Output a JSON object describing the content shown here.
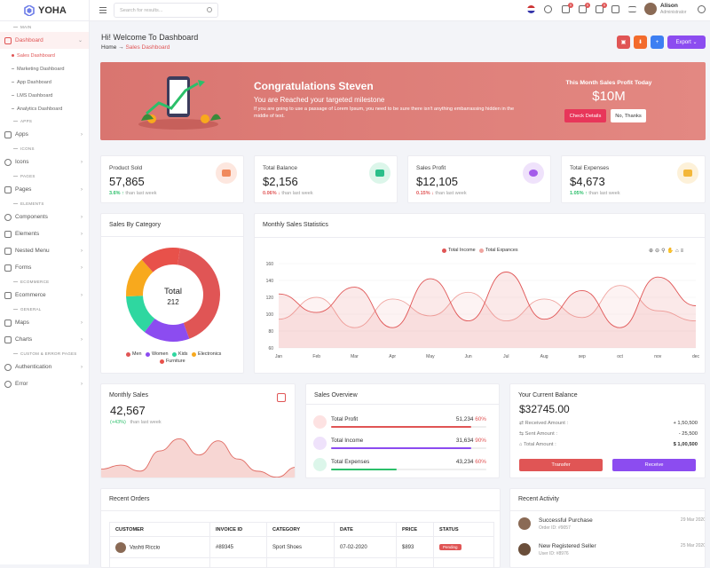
{
  "app": {
    "brand": "YOHA"
  },
  "header": {
    "search_placeholder": "Search for results...",
    "user_name": "Alison",
    "user_role": "Administrator",
    "badges": [
      "0",
      "0",
      "0"
    ]
  },
  "sidebar": {
    "sections": {
      "main": "MAIN",
      "apps": "APPS",
      "icons": "ICONS",
      "pages": "PAGES",
      "elements": "ELEMENTS",
      "ecommerce": "ECOMMERCE",
      "general": "GENERAL",
      "custom": "CUSTOM & ERROR PAGES"
    },
    "dashboard": "Dashboard",
    "subs": [
      "Sales Dashboard",
      "Marketing Dashboard",
      "App Dashboard",
      "LMS Dashboard",
      "Analytics Dashboard"
    ],
    "items": {
      "apps": "Apps",
      "icons": "Icons",
      "pages": "Pages",
      "components": "Components",
      "elements": "Elements",
      "nested": "Nested Menu",
      "forms": "Forms",
      "ecommerce": "Ecommerce",
      "maps": "Maps",
      "charts": "Charts",
      "auth": "Authentication",
      "error": "Error"
    }
  },
  "page": {
    "title": "Hi! Welcome To Dashboard",
    "crumb_home": "Home",
    "crumb_arrow": "→",
    "crumb_current": "Sales Dashboard",
    "export": "Export"
  },
  "banner": {
    "title": "Congratulations Steven",
    "subtitle": "You are Reached your targeted milestone",
    "text": "If you are going to use a passage of Lorem Ipsum, you need to be sure there isn't anything embarrassing hidden in the middle of text.",
    "profit_label": "This Month Sales Profit Today",
    "profit_value": "$10M",
    "details_btn": "Check Details",
    "thanks_btn": "No, Thanks"
  },
  "stats": [
    {
      "label": "Product Sold",
      "value": "57,865",
      "change": "3.6%",
      "arrow": "↑",
      "suffix": "than last week",
      "color": "#2bbf6a",
      "icon_color": "#f08a5d",
      "bg": "#fde7df"
    },
    {
      "label": "Total Balance",
      "value": "$2,156",
      "change": "0.06%",
      "arrow": "↓",
      "suffix": "than last week",
      "color": "#e05555",
      "icon_color": "#2bbf8a",
      "bg": "#dcf6ea"
    },
    {
      "label": "Sales Profit",
      "value": "$12,105",
      "change": "0.15%",
      "arrow": "↓",
      "suffix": "than last week",
      "color": "#e05555",
      "icon_color": "#a35bea",
      "bg": "#efe2fb"
    },
    {
      "label": "Total Expenses",
      "value": "$4,673",
      "change": "1.05%",
      "arrow": "↑",
      "suffix": "than last week",
      "color": "#2bbf6a",
      "icon_color": "#f3b73a",
      "bg": "#fdf1d9"
    }
  ],
  "category": {
    "title": "Sales By Category",
    "center_label": "Total",
    "center_value": "212",
    "legend": [
      {
        "name": "Men",
        "color": "#e05555"
      },
      {
        "name": "Women",
        "color": "#8c4cf0"
      },
      {
        "name": "Kids",
        "color": "#2fd7a0"
      },
      {
        "name": "Electronics",
        "color": "#f8a91d"
      },
      {
        "name": "Furniture",
        "color": "#e8514a"
      }
    ]
  },
  "monthly_stats": {
    "title": "Monthly Sales Statistics"
  },
  "monthly_sales": {
    "title": "Monthly Sales",
    "value": "42,567",
    "change": "(+43%)",
    "suffix": "than last week"
  },
  "overview": {
    "title": "Sales Overview",
    "rows": [
      {
        "name": "Total Profit",
        "value": "51,234",
        "pct": "60%",
        "fill": 0.9,
        "color": "#e05555",
        "bg": "#fde2e2"
      },
      {
        "name": "Total Income",
        "value": "31,634",
        "pct": "90%",
        "fill": 0.9,
        "color": "#8c4cf0",
        "bg": "#efe2fb"
      },
      {
        "name": "Total Expenses",
        "value": "43,234",
        "pct": "60%",
        "fill": 0.42,
        "color": "#2bbf6a",
        "bg": "#dcf6ea"
      }
    ]
  },
  "balance": {
    "title": "Your Current Balance",
    "value": "$32745.00",
    "rows": [
      {
        "label": "Received Amount",
        "sep": ":",
        "value": "+ 1,50,500"
      },
      {
        "label": "Sent Amount",
        "sep": ":",
        "value": "- 25,500"
      },
      {
        "label": "Total Amount",
        "sep": ":",
        "value": "$ 1,00,500"
      }
    ],
    "transfer": "Transfer",
    "receive": "Receive"
  },
  "orders": {
    "title": "Recent Orders",
    "headers": [
      "CUSTOMER",
      "INVOICE ID",
      "CATEGORY",
      "DATE",
      "PRICE",
      "STATUS"
    ],
    "rows": [
      {
        "customer": "Vashti Riccio",
        "invoice": "#89345",
        "category": "Sport Shoes",
        "date": "07-02-2020",
        "price": "$893",
        "status": "Pending"
      }
    ]
  },
  "activity": {
    "title": "Recent Activity",
    "items": [
      {
        "title": "Successful Purchase",
        "sub": "Order ID: #9057",
        "date": "29 Mar 2020"
      },
      {
        "title": "New Registered Seller",
        "sub": "User ID: #8976",
        "date": "25 Mar 2020"
      }
    ]
  },
  "chart_data": [
    {
      "type": "pie",
      "title": "Sales By Category",
      "categories": [
        "Men",
        "Women",
        "Kids",
        "Electronics",
        "Furniture"
      ],
      "values": [
        42,
        16,
        14,
        14,
        14
      ],
      "colors": [
        "#e05555",
        "#8c4cf0",
        "#2fd7a0",
        "#f8a91d",
        "#e8514a"
      ]
    },
    {
      "type": "area",
      "title": "Monthly Sales Statistics",
      "categories": [
        "Jan",
        "Feb",
        "Mar",
        "Apr",
        "May",
        "Jun",
        "Jul",
        "Aug",
        "sep",
        "oct",
        "nov",
        "dec"
      ],
      "series": [
        {
          "name": "Total Income",
          "color": "#e05555",
          "values": [
            124,
            102,
            132,
            84,
            142,
            92,
            150,
            94,
            128,
            84,
            144,
            110
          ]
        },
        {
          "name": "Total Expances",
          "color": "#f0a5a0",
          "values": [
            94,
            120,
            84,
            118,
            98,
            126,
            92,
            118,
            96,
            134,
            104,
            92
          ]
        }
      ],
      "yticks": [
        "160",
        "140",
        "120",
        "100",
        "80",
        "60"
      ],
      "ylim": [
        60,
        160
      ]
    },
    {
      "type": "area",
      "title": "Monthly Sales",
      "values": [
        10,
        14,
        8,
        28,
        40,
        24,
        38,
        20,
        8,
        2,
        12
      ],
      "ylim": [
        0,
        50
      ]
    }
  ]
}
